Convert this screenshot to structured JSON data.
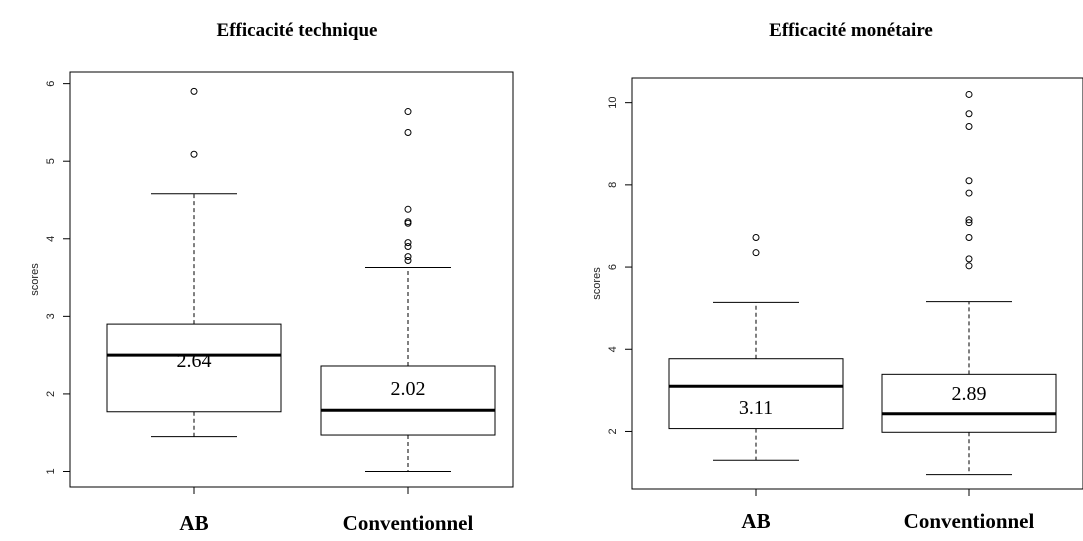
{
  "chart_data": [
    {
      "type": "boxplot",
      "title": "Efficacité technique",
      "ylabel": "scores",
      "ylim": [
        0.8,
        6.15
      ],
      "yticks": [
        1,
        2,
        3,
        4,
        5,
        6
      ],
      "categories": [
        "AB",
        "Conventionnel"
      ],
      "boxes": [
        {
          "category": "AB",
          "whisker_low": 1.45,
          "q1": 1.77,
          "median": 2.5,
          "q3": 2.9,
          "whisker_high": 4.58,
          "outliers": [
            5.09,
            5.9
          ],
          "mean_label": "2.64"
        },
        {
          "category": "Conventionnel",
          "whisker_low": 1.0,
          "q1": 1.47,
          "median": 1.79,
          "q3": 2.36,
          "whisker_high": 3.63,
          "outliers": [
            3.72,
            3.77,
            3.9,
            3.95,
            4.2,
            4.22,
            4.38,
            5.37,
            5.64
          ],
          "mean_label": "2.02"
        }
      ]
    },
    {
      "type": "boxplot",
      "title": "Efficacité monétaire",
      "ylabel": "scores",
      "ylim": [
        0.6,
        10.6
      ],
      "yticks": [
        2,
        4,
        6,
        8,
        10
      ],
      "categories": [
        "AB",
        "Conventionnel"
      ],
      "boxes": [
        {
          "category": "AB",
          "whisker_low": 1.3,
          "q1": 2.07,
          "median": 3.1,
          "q3": 3.77,
          "whisker_high": 5.14,
          "outliers": [
            6.35,
            6.72
          ],
          "mean_label": "3.11"
        },
        {
          "category": "Conventionnel",
          "whisker_low": 0.95,
          "q1": 1.98,
          "median": 2.43,
          "q3": 3.39,
          "whisker_high": 5.16,
          "outliers": [
            6.03,
            6.2,
            6.72,
            7.08,
            7.15,
            7.8,
            8.1,
            9.42,
            9.73,
            10.2
          ],
          "mean_label": "2.89"
        }
      ]
    }
  ]
}
